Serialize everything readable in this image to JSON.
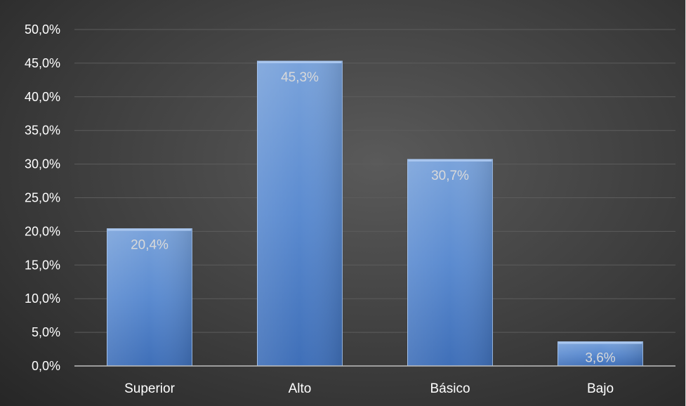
{
  "chart_data": {
    "type": "bar",
    "title": "",
    "xlabel": "",
    "ylabel": "",
    "categories": [
      "Superior",
      "Alto",
      "Básico",
      "Bajo"
    ],
    "values": [
      20.4,
      45.3,
      30.7,
      3.6
    ],
    "data_labels": [
      "20,4%",
      "45,3%",
      "30,7%",
      "3,6%"
    ],
    "ylim": [
      0,
      50
    ],
    "y_ticks": [
      0,
      5,
      10,
      15,
      20,
      25,
      30,
      35,
      40,
      45,
      50
    ],
    "y_tick_labels": [
      "0,0%",
      "5,0%",
      "10,0%",
      "15,0%",
      "20,0%",
      "25,0%",
      "30,0%",
      "35,0%",
      "40,0%",
      "45,0%",
      "50,0%"
    ],
    "grid": true,
    "legend": "none"
  },
  "colors": {
    "bar_top": "#7aa3db",
    "bar_mid": "#5b8bd0",
    "bar_bottom": "#3f6fb8",
    "gridline": "#5c5c5c",
    "axis_line": "#bfbfbf"
  }
}
